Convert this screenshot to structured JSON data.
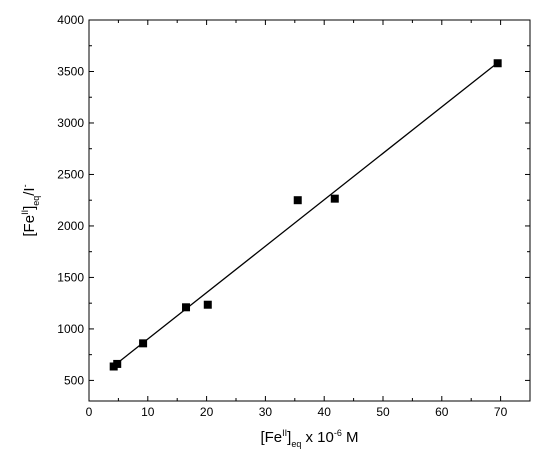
{
  "chart_data": {
    "type": "scatter",
    "title": "",
    "x_axis": {
      "label_parts": [
        "[Fe",
        "II",
        "]",
        "eq",
        " x 10",
        "-6",
        " M"
      ],
      "range": [
        0,
        75
      ],
      "ticks": [
        0,
        10,
        20,
        30,
        40,
        50,
        60,
        70
      ],
      "tick_labels": [
        "0",
        "10",
        "20",
        "30",
        "40",
        "50",
        "60",
        "70"
      ]
    },
    "y_axis": {
      "label_parts": [
        "[Fe",
        "II",
        "]",
        "eq",
        "/I",
        "-"
      ],
      "range": [
        300,
        4000
      ],
      "ticks": [
        500,
        1000,
        1500,
        2000,
        2500,
        3000,
        3500,
        4000
      ],
      "tick_labels": [
        "500",
        "1000",
        "1500",
        "2000",
        "2500",
        "3000",
        "3500",
        "4000"
      ]
    },
    "grid": false,
    "legend": "none",
    "series": [
      {
        "kind": "points",
        "marker": "square",
        "color": "#000000",
        "points": [
          {
            "x": 4.2,
            "y": 635
          },
          {
            "x": 4.8,
            "y": 660
          },
          {
            "x": 9.2,
            "y": 860
          },
          {
            "x": 16.5,
            "y": 1210
          },
          {
            "x": 20.2,
            "y": 1235
          },
          {
            "x": 35.5,
            "y": 2250
          },
          {
            "x": 41.8,
            "y": 2265
          },
          {
            "x": 69.5,
            "y": 3580
          }
        ]
      },
      {
        "kind": "fit-line",
        "color": "#000000",
        "points": [
          {
            "x": 4.2,
            "y": 640
          },
          {
            "x": 69.5,
            "y": 3585
          }
        ]
      }
    ]
  }
}
